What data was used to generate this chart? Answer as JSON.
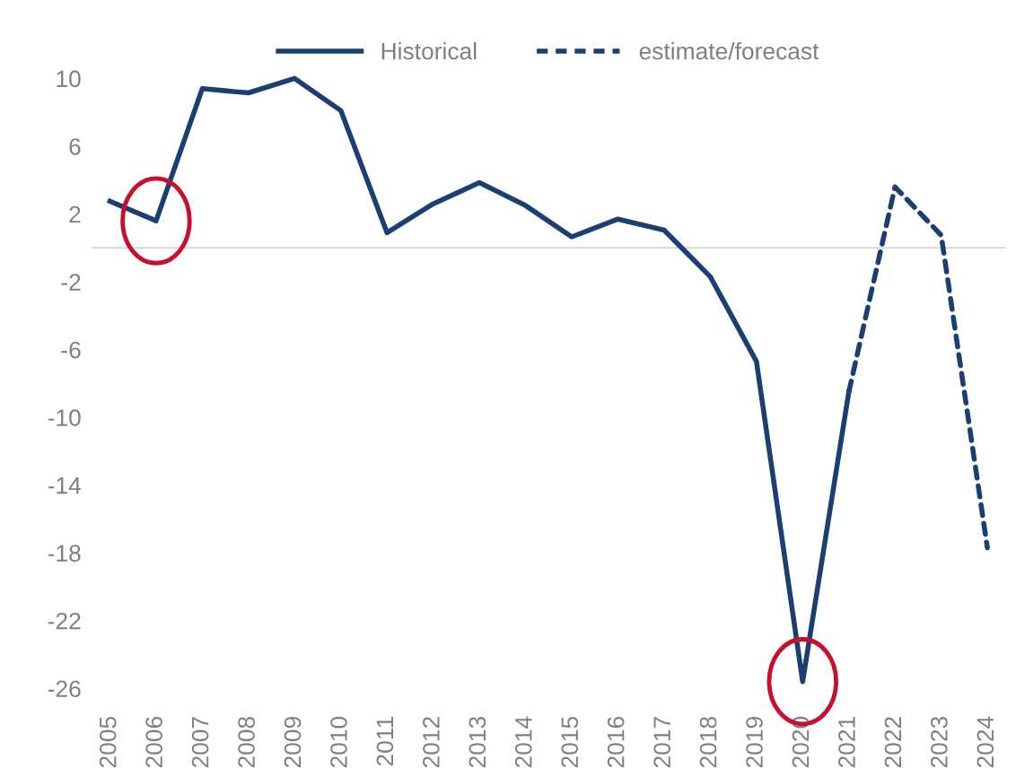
{
  "chart_data": {
    "type": "line",
    "categories": [
      "2005",
      "2006",
      "2007",
      "2008",
      "2009",
      "2010",
      "2011",
      "2012",
      "2013",
      "2014",
      "2015",
      "2016",
      "2017",
      "2018",
      "2019",
      "2020",
      "2021",
      "2022",
      "2023",
      "2024"
    ],
    "series": [
      {
        "name": "Historical",
        "color": "#1c3f73",
        "line_style": "solid",
        "values": [
          2.75,
          1.6,
          9.4,
          9.15,
          10,
          8.1,
          0.9,
          2.6,
          3.85,
          2.5,
          0.65,
          1.7,
          1.05,
          -1.7,
          -6.7,
          -25.6,
          -8.5,
          null,
          null,
          null
        ]
      },
      {
        "name": "estimate/forecast",
        "color": "#1c3f73",
        "line_style": "dashed",
        "values": [
          null,
          null,
          null,
          null,
          null,
          null,
          null,
          null,
          null,
          null,
          null,
          null,
          null,
          null,
          null,
          null,
          -8.5,
          3.6,
          0.75,
          -17.7
        ]
      }
    ],
    "ylim": [
      -26,
      10
    ],
    "yticks": [
      10,
      6,
      2,
      -2,
      -6,
      -10,
      -14,
      -18,
      -22,
      -26
    ],
    "ref_lines": [
      {
        "axis": "y",
        "value": 0,
        "color": "#d9d9d9"
      }
    ],
    "grid": false,
    "legend": "top",
    "marker": "none"
  }
}
